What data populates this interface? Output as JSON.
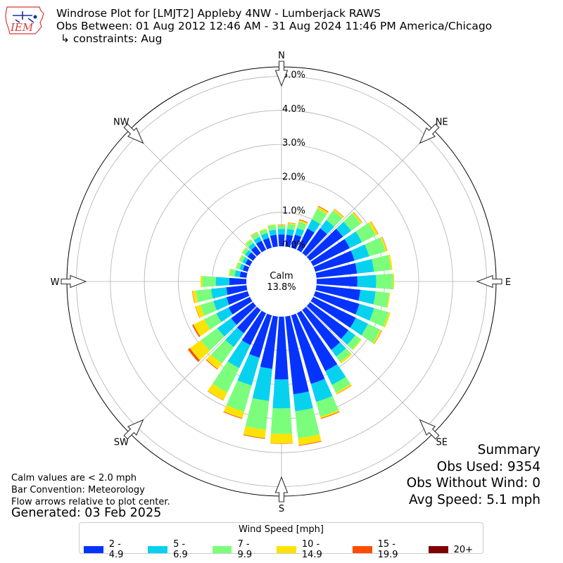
{
  "header": {
    "title": "Windrose Plot for [LMJT2] Appleby 4NW - Lumberjack RAWS",
    "obs_range": "Obs Between: 01 Aug 2012 12:46 AM - 31 Aug 2024 11:46 PM America/Chicago",
    "constraints": "↳ constraints: Aug"
  },
  "logo": {
    "text": "IEM",
    "icon": "iowa-state-outline-icon"
  },
  "notes": {
    "calm_def": "Calm values are < 2.0 mph",
    "bar_convention": "Bar Convention: Meteorology",
    "flow_arrows": "Flow arrows relative to plot center.",
    "generated": "Generated: 03 Feb 2025"
  },
  "summary": {
    "title": "Summary",
    "obs_used": "Obs Used: 9354",
    "obs_without_wind": "Obs Without Wind: 0",
    "avg_speed": "Avg Speed: 5.1 mph"
  },
  "chart_data": {
    "type": "windrose",
    "calm_label": "Calm",
    "calm_value": "13.8%",
    "radial_labels": [
      "0.0%",
      "1.0%",
      "2.0%",
      "3.0%",
      "4.0%",
      "5.0%"
    ],
    "radial_ticks": [
      0,
      1,
      2,
      3,
      4,
      5
    ],
    "rlim": [
      0,
      5.6
    ],
    "compass_labels": [
      {
        "label": "N",
        "deg": 0
      },
      {
        "label": "NE",
        "deg": 45
      },
      {
        "label": "E",
        "deg": 90
      },
      {
        "label": "SE",
        "deg": 135
      },
      {
        "label": "S",
        "deg": 180
      },
      {
        "label": "SW",
        "deg": 225
      },
      {
        "label": "W",
        "deg": 270
      },
      {
        "label": "NW",
        "deg": 315
      }
    ],
    "legend_title": "Wind Speed [mph]",
    "legend_placement": "bottom",
    "bins": [
      {
        "label": "2 - 4.9",
        "color": "#0433ff"
      },
      {
        "label": "5 - 6.9",
        "color": "#06d2f0"
      },
      {
        "label": "7 - 9.9",
        "color": "#7bfe7b"
      },
      {
        "label": "10 - 14.9",
        "color": "#fde305"
      },
      {
        "label": "15 - 19.9",
        "color": "#ff4c00"
      },
      {
        "label": "20+",
        "color": "#800000"
      }
    ],
    "directions_deg": [
      0,
      10,
      20,
      30,
      40,
      50,
      60,
      70,
      80,
      90,
      100,
      110,
      120,
      130,
      140,
      150,
      160,
      170,
      180,
      190,
      200,
      210,
      220,
      230,
      240,
      250,
      260,
      270,
      280,
      290,
      300,
      310,
      320,
      330,
      340,
      350
    ],
    "segments": [
      [
        0.35,
        0.16,
        0.1,
        0.02,
        0.01,
        0
      ],
      [
        0.35,
        0.17,
        0.15,
        0.04,
        0.01,
        0
      ],
      [
        0.4,
        0.2,
        0.2,
        0.05,
        0.02,
        0
      ],
      [
        0.7,
        0.3,
        0.35,
        0.07,
        0.02,
        0
      ],
      [
        0.9,
        0.3,
        0.35,
        0.05,
        0.01,
        0
      ],
      [
        1.2,
        0.3,
        0.35,
        0.05,
        0.01,
        0
      ],
      [
        1.2,
        0.4,
        0.45,
        0.08,
        0.01,
        0
      ],
      [
        1.2,
        0.45,
        0.5,
        0.05,
        0.01,
        0
      ],
      [
        1.2,
        0.5,
        0.5,
        0.05,
        0,
        0
      ],
      [
        1.2,
        0.55,
        0.5,
        0.03,
        0,
        0
      ],
      [
        1.3,
        0.45,
        0.4,
        0.03,
        0,
        0
      ],
      [
        1.35,
        0.45,
        0.45,
        0.05,
        0,
        0
      ],
      [
        1.4,
        0.4,
        0.4,
        0.05,
        0.01,
        0
      ],
      [
        1.4,
        0.25,
        0.2,
        0.03,
        0,
        0
      ],
      [
        1.45,
        0.25,
        0.2,
        0.05,
        0,
        0
      ],
      [
        1.9,
        0.45,
        0.25,
        0.05,
        0.01,
        0
      ],
      [
        2.1,
        0.55,
        0.45,
        0.05,
        0.02,
        0
      ],
      [
        2.3,
        0.5,
        0.8,
        0.2,
        0.02,
        0
      ],
      [
        1.85,
        0.85,
        0.75,
        0.28,
        0.01,
        0
      ],
      [
        1.55,
        0.95,
        0.85,
        0.25,
        0.02,
        0
      ],
      [
        1.3,
        0.85,
        0.8,
        0.2,
        0.02,
        0
      ],
      [
        1.05,
        0.75,
        0.8,
        0.25,
        0.01,
        0
      ],
      [
        0.85,
        0.5,
        0.6,
        0.2,
        0.02,
        0
      ],
      [
        0.8,
        0.5,
        0.6,
        0.4,
        0.07,
        0
      ],
      [
        0.7,
        0.4,
        0.4,
        0.35,
        0.04,
        0
      ],
      [
        0.65,
        0.4,
        0.4,
        0.15,
        0.01,
        0
      ],
      [
        0.6,
        0.45,
        0.45,
        0.1,
        0.01,
        0
      ],
      [
        0.5,
        0.4,
        0.4,
        0.05,
        0,
        0
      ],
      [
        0.2,
        0.15,
        0.15,
        0.03,
        0,
        0
      ],
      [
        0.15,
        0.1,
        0.1,
        0.02,
        0,
        0
      ],
      [
        0.15,
        0.1,
        0.1,
        0.02,
        0,
        0
      ],
      [
        0.2,
        0.1,
        0.1,
        0.02,
        0,
        0
      ],
      [
        0.25,
        0.12,
        0.12,
        0.02,
        0,
        0
      ],
      [
        0.3,
        0.13,
        0.13,
        0.02,
        0.01,
        0
      ],
      [
        0.3,
        0.15,
        0.12,
        0.02,
        0,
        0
      ],
      [
        0.35,
        0.15,
        0.14,
        0.02,
        0,
        0
      ]
    ]
  }
}
